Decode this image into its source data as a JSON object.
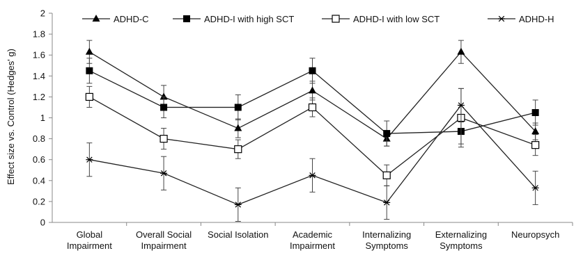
{
  "chart_data": {
    "type": "line",
    "ylabel": "Effect size vs. Control (Hedges' g)",
    "ylim": [
      0,
      2
    ],
    "yticks": [
      "0",
      "0.2",
      "0.4",
      "0.6",
      "0.8",
      "1",
      "1.2",
      "1.4",
      "1.6",
      "1.8",
      "2"
    ],
    "categories": [
      [
        "Global",
        "Impairment"
      ],
      [
        "Overall Social",
        "Impairment"
      ],
      [
        "Social Isolation"
      ],
      [
        "Academic",
        "Impairment"
      ],
      [
        "Internalizing",
        "Symptoms"
      ],
      [
        "Externalizing",
        "Symptoms"
      ],
      [
        "Neuropsych"
      ]
    ],
    "legend_position": "top",
    "grid": false,
    "series": [
      {
        "name": "ADHD-C",
        "marker": "triangle",
        "values": [
          1.63,
          1.2,
          0.9,
          1.26,
          0.8,
          1.63,
          0.87
        ],
        "err": [
          0.11,
          0.11,
          0.09,
          0.09,
          0.07,
          0.11,
          0.08
        ]
      },
      {
        "name": "ADHD-I with high SCT",
        "marker": "filled-square",
        "values": [
          1.45,
          1.1,
          1.1,
          1.45,
          0.85,
          0.87,
          1.05
        ],
        "err": [
          0.12,
          0.1,
          0.12,
          0.12,
          0.12,
          0.12,
          0.12
        ]
      },
      {
        "name": "ADHD-I with low SCT",
        "marker": "open-square",
        "values": [
          1.2,
          0.8,
          0.7,
          1.1,
          0.45,
          1.0,
          0.74
        ],
        "err": [
          0.1,
          0.1,
          0.09,
          0.09,
          0.1,
          0.28,
          0.1
        ]
      },
      {
        "name": "ADHD-H",
        "marker": "star",
        "values": [
          0.6,
          0.47,
          0.17,
          0.45,
          0.19,
          1.12,
          0.33
        ],
        "err": [
          0.16,
          0.16,
          0.16,
          0.16,
          0.16,
          0.16,
          0.16
        ]
      }
    ]
  }
}
